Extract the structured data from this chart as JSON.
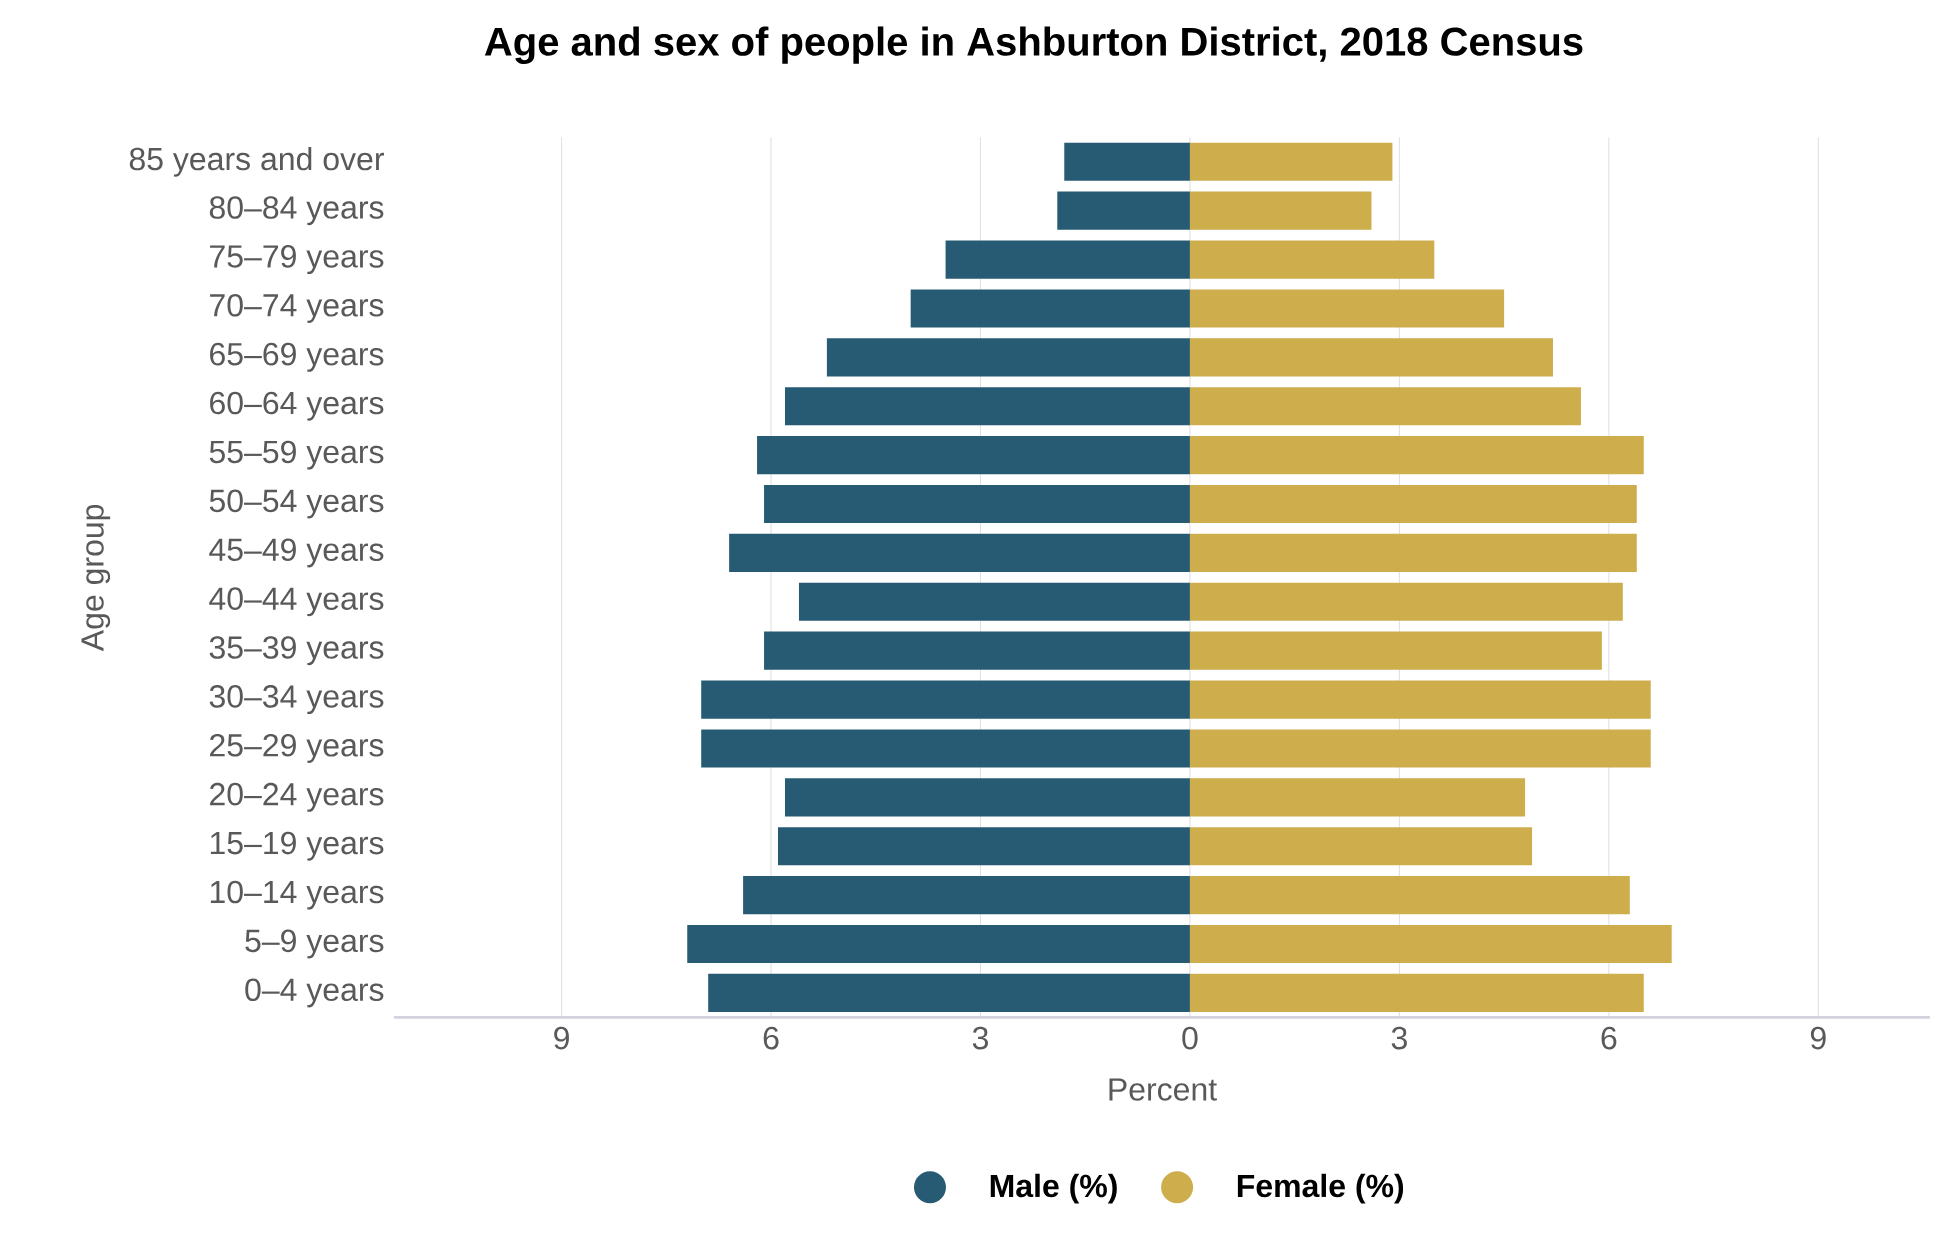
{
  "chart_data": {
    "type": "bar",
    "orientation": "horizontal",
    "title": "Age and sex of people in Ashburton District, 2018 Census",
    "xlabel": "Percent",
    "ylabel": "Age group",
    "categories": [
      "85 years and over",
      "80–84 years",
      "75–79 years",
      "70–74 years",
      "65–69 years",
      "60–64 years",
      "55–59 years",
      "50–54 years",
      "45–49 years",
      "40–44 years",
      "35–39 years",
      "30–34 years",
      "25–29 years",
      "20–24 years",
      "15–19 years",
      "10–14 years",
      "5–9 years",
      "0–4 years"
    ],
    "series": [
      {
        "name": "Male (%)",
        "color": "#275b73",
        "values": [
          -1.8,
          -1.9,
          -3.5,
          -4.0,
          -5.2,
          -5.8,
          -6.2,
          -6.1,
          -6.6,
          -5.6,
          -6.1,
          -7.0,
          -7.0,
          -5.8,
          -5.9,
          -6.4,
          -7.2,
          -6.9
        ]
      },
      {
        "name": "Female (%)",
        "color": "#cdad4c",
        "values": [
          2.9,
          2.6,
          3.5,
          4.5,
          5.2,
          5.6,
          6.5,
          6.4,
          6.4,
          6.2,
          5.9,
          6.6,
          6.6,
          4.8,
          4.9,
          6.3,
          6.9,
          6.5
        ]
      }
    ],
    "xlim": [
      -11.4,
      10.6
    ],
    "xticks": [
      {
        "value": -9,
        "label": "9"
      },
      {
        "value": -6,
        "label": "6"
      },
      {
        "value": -3,
        "label": "3"
      },
      0,
      3,
      6,
      9
    ],
    "grid": "x",
    "legend": "bottom",
    "stacked": true
  }
}
